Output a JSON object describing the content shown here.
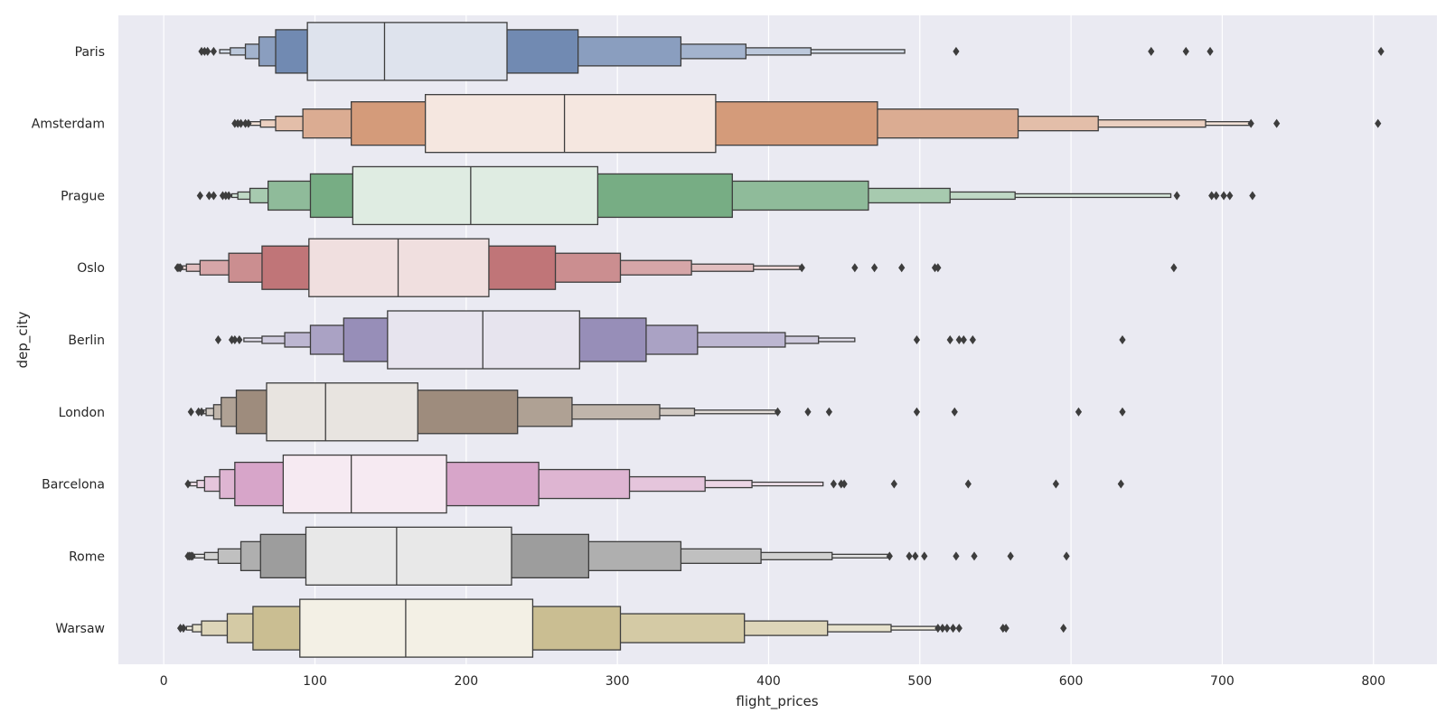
{
  "chart_data": {
    "type": "boxen",
    "orientation": "horizontal",
    "xlabel": "flight_prices",
    "ylabel": "dep_city",
    "xlim": [
      -30,
      842
    ],
    "xticks": [
      0,
      100,
      200,
      300,
      400,
      500,
      600,
      700,
      800
    ],
    "grid": true,
    "series": [
      {
        "name": "Paris",
        "color": "#5875a4",
        "median": 146,
        "levels": [
          [
            95,
            227
          ],
          [
            74,
            274
          ],
          [
            63,
            342
          ],
          [
            54,
            385
          ],
          [
            44,
            428
          ],
          [
            37,
            490
          ]
        ],
        "outliers": [
          25,
          27,
          29,
          33,
          524,
          653,
          676,
          692,
          805
        ]
      },
      {
        "name": "Amsterdam",
        "color": "#cc8963",
        "median": 265,
        "levels": [
          [
            173,
            365
          ],
          [
            124,
            472
          ],
          [
            92,
            565
          ],
          [
            74,
            618
          ],
          [
            64,
            689
          ],
          [
            57,
            719
          ]
        ],
        "outliers": [
          47,
          49,
          51,
          54,
          56,
          719,
          736,
          803
        ]
      },
      {
        "name": "Prague",
        "color": "#5f9e6e",
        "median": 203,
        "levels": [
          [
            125,
            287
          ],
          [
            97,
            376
          ],
          [
            69,
            466
          ],
          [
            57,
            520
          ],
          [
            49,
            563
          ],
          [
            45,
            666
          ]
        ],
        "outliers": [
          24,
          30,
          33,
          39,
          41,
          43,
          670,
          693,
          696,
          701,
          705,
          720
        ]
      },
      {
        "name": "Oslo",
        "color": "#b55d60",
        "median": 155,
        "levels": [
          [
            96,
            215
          ],
          [
            65,
            259
          ],
          [
            43,
            302
          ],
          [
            24,
            349
          ],
          [
            15,
            390
          ],
          [
            10,
            422
          ]
        ],
        "outliers": [
          9,
          10,
          11,
          422,
          457,
          470,
          488,
          510,
          512,
          668
        ]
      },
      {
        "name": "Berlin",
        "color": "#857aab",
        "median": 211,
        "levels": [
          [
            148,
            275
          ],
          [
            119,
            319
          ],
          [
            97,
            353
          ],
          [
            80,
            411
          ],
          [
            65,
            433
          ],
          [
            53,
            457
          ]
        ],
        "outliers": [
          36,
          45,
          47,
          50,
          498,
          520,
          526,
          529,
          535,
          634
        ]
      },
      {
        "name": "London",
        "color": "#8d7866",
        "median": 107,
        "levels": [
          [
            68,
            168
          ],
          [
            48,
            234
          ],
          [
            38,
            270
          ],
          [
            33,
            328
          ],
          [
            28,
            351
          ],
          [
            24,
            406
          ]
        ],
        "outliers": [
          18,
          23,
          25,
          406,
          426,
          440,
          498,
          523,
          605,
          634
        ]
      },
      {
        "name": "Barcelona",
        "color": "#d095bf",
        "median": 124,
        "levels": [
          [
            79,
            187
          ],
          [
            47,
            248
          ],
          [
            37,
            308
          ],
          [
            27,
            358
          ],
          [
            22,
            389
          ],
          [
            17,
            436
          ]
        ],
        "outliers": [
          16,
          443,
          448,
          450,
          483,
          532,
          590,
          633
        ]
      },
      {
        "name": "Rome",
        "color": "#8c8c8c",
        "median": 154,
        "levels": [
          [
            94,
            230
          ],
          [
            64,
            281
          ],
          [
            51,
            342
          ],
          [
            36,
            395
          ],
          [
            27,
            442
          ],
          [
            20,
            480
          ]
        ],
        "outliers": [
          16,
          17,
          18,
          19,
          480,
          493,
          497,
          503,
          524,
          536,
          560,
          597
        ]
      },
      {
        "name": "Warsaw",
        "color": "#c1b37f",
        "median": 160,
        "levels": [
          [
            90,
            244
          ],
          [
            59,
            302
          ],
          [
            42,
            384
          ],
          [
            25,
            439
          ],
          [
            19,
            481
          ],
          [
            15,
            512
          ]
        ],
        "outliers": [
          11,
          13,
          512,
          515,
          518,
          522,
          526,
          555,
          557,
          595
        ]
      }
    ]
  }
}
